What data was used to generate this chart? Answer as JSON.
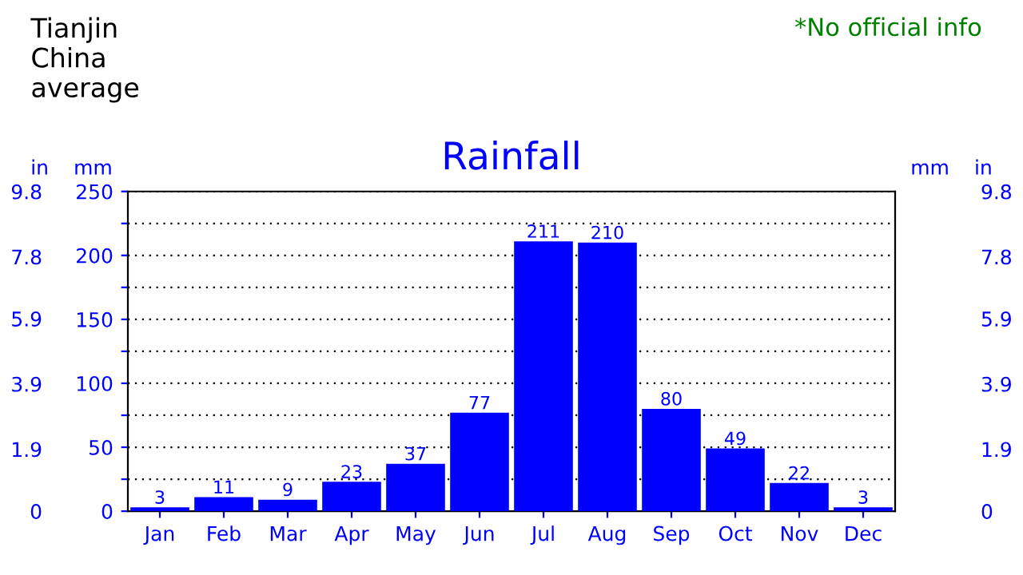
{
  "chart_data": {
    "type": "bar",
    "title": "Rainfall",
    "categories": [
      "Jan",
      "Feb",
      "Mar",
      "Apr",
      "May",
      "Jun",
      "Jul",
      "Aug",
      "Sep",
      "Oct",
      "Nov",
      "Dec"
    ],
    "values": [
      3,
      11,
      9,
      23,
      37,
      77,
      211,
      210,
      80,
      49,
      22,
      3
    ],
    "color": "#0000ff",
    "data_labels": true,
    "ylabel": "mm",
    "y2label": "in",
    "ylim": [
      0,
      250
    ],
    "yticks": [
      0,
      {
        "value": 25,
        "label": null
      },
      50,
      {
        "value": 75,
        "label": null
      },
      100,
      {
        "value": 125,
        "label": null
      },
      150,
      {
        "value": 175,
        "label": null
      },
      200,
      {
        "value": 225,
        "label": null
      },
      250
    ],
    "y2lim": [
      0,
      9.8
    ],
    "y2ticks": [
      0,
      1.9,
      3.9,
      5.9,
      7.8,
      9.8
    ],
    "y3label": "in",
    "y3lim": [
      0,
      9.8
    ],
    "y3ticks": [
      0,
      1.9,
      3.9,
      5.9,
      7.8,
      9.8
    ],
    "grid": "y",
    "annotations": [
      "Tianjin\nChina\naverage",
      "*No official info"
    ]
  }
}
